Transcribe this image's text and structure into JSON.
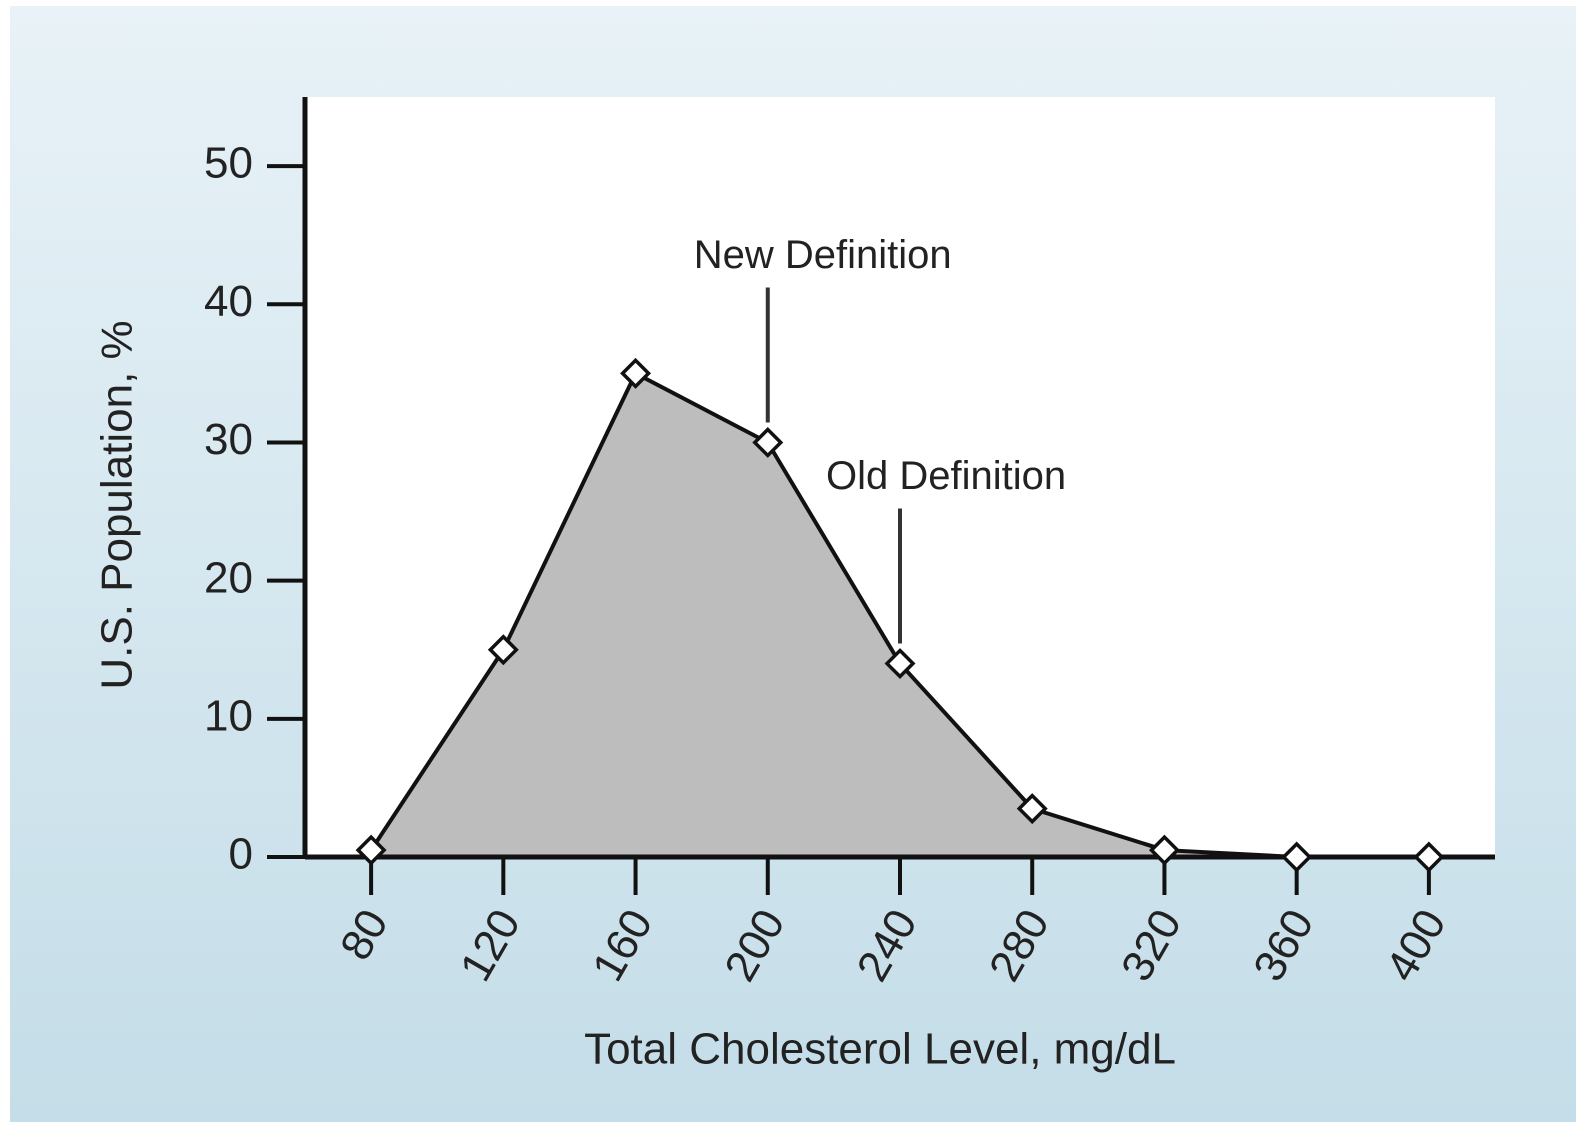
{
  "chart_data": {
    "type": "area",
    "ylabel": "U.S. Population, %",
    "xlabel": "Total Cholesterol Level, mg/dL",
    "x": [
      80,
      120,
      160,
      200,
      240,
      280,
      320,
      360,
      400
    ],
    "series": [
      {
        "name": "U.S. Population",
        "color": "#bdbdbd",
        "values": [
          0.5,
          15,
          35,
          30,
          14,
          3.5,
          0.5,
          0,
          0
        ]
      }
    ],
    "xlim": [
      60,
      420
    ],
    "xticks": [
      80,
      120,
      160,
      200,
      240,
      280,
      320,
      360,
      400
    ],
    "ylim": [
      0,
      55
    ],
    "yticks": [
      0,
      10,
      20,
      30,
      40,
      50
    ],
    "annotations": [
      {
        "text": "New Definition",
        "x": 200
      },
      {
        "text": "Old Definition",
        "x": 240
      }
    ]
  }
}
